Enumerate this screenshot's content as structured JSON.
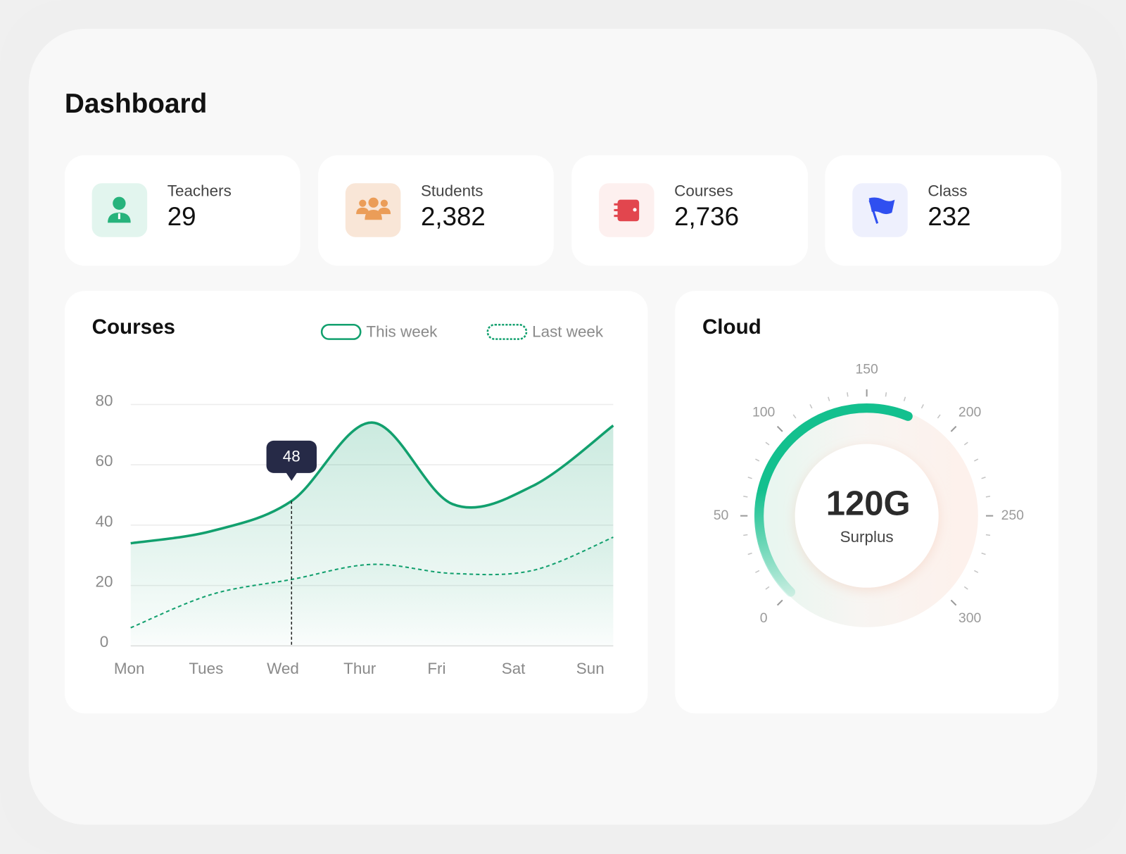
{
  "header": {
    "title": "Dashboard"
  },
  "stats": [
    {
      "label": "Teachers",
      "value": "29"
    },
    {
      "label": "Students",
      "value": "2,382"
    },
    {
      "label": "Courses",
      "value": "2,736"
    },
    {
      "label": "Class",
      "value": "232"
    }
  ],
  "chart_data": [
    {
      "type": "line",
      "title": "Courses",
      "categories": [
        "Mon",
        "Tues",
        "Wed",
        "Thur",
        "Fri",
        "Sat",
        "Sun"
      ],
      "series": [
        {
          "name": "This week",
          "color": "#12a06e",
          "line_style": "solid",
          "values": [
            34,
            38,
            48,
            74,
            47,
            53,
            73
          ]
        },
        {
          "name": "Last week",
          "color": "#12a06e",
          "line_style": "dashed",
          "values": [
            6,
            17,
            22,
            27,
            24,
            25,
            36
          ]
        }
      ],
      "ylim": [
        0,
        80
      ],
      "yticks": [
        0,
        20,
        40,
        60,
        80
      ],
      "grid": true,
      "tooltip_index": 2
    },
    {
      "type": "gauge",
      "title": "Cloud",
      "value": 175,
      "color": "#13c08e",
      "ylim": [
        0,
        300
      ],
      "yticks": [
        0,
        50,
        100,
        150,
        200,
        250,
        300
      ],
      "center_text": "120G",
      "center_subtitle": "Surplus"
    }
  ]
}
